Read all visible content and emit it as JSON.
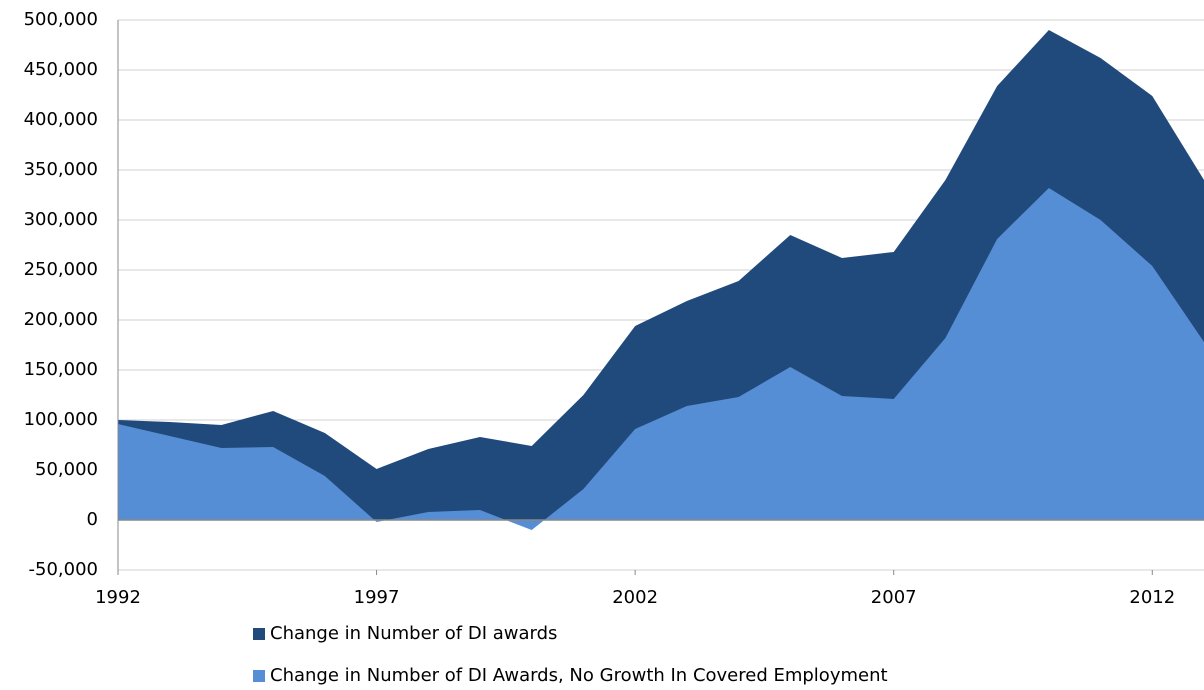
{
  "chart_data": {
    "type": "area",
    "x": [
      1992,
      1993,
      1994,
      1995,
      1996,
      1997,
      1998,
      1999,
      2000,
      2001,
      2002,
      2003,
      2004,
      2005,
      2006,
      2007,
      2008,
      2009,
      2010,
      2011,
      2012,
      2013
    ],
    "series": [
      {
        "name": "Change in Number of DI awards",
        "color": "#214a7c",
        "values": [
          100000,
          98000,
          95000,
          109000,
          87000,
          51000,
          71000,
          83000,
          74000,
          125000,
          194000,
          219000,
          239000,
          285000,
          262000,
          268000,
          340000,
          434000,
          490000,
          462000,
          424000,
          340000
        ]
      },
      {
        "name": "Change in Number of DI Awards, No Growth In Covered Employment",
        "color": "#558ed5",
        "values": [
          96000,
          84000,
          72000,
          73000,
          44000,
          -2000,
          8000,
          10000,
          -10000,
          31000,
          91000,
          114000,
          123000,
          153000,
          124000,
          121000,
          182000,
          281000,
          332000,
          300000,
          254000,
          178000
        ]
      }
    ],
    "xlim": [
      1992,
      2013
    ],
    "xticks": [
      1992,
      1997,
      2002,
      2007,
      2012
    ],
    "ylim": [
      -50000,
      500000
    ],
    "yticks": [
      {
        "value": -50000,
        "label": "-50,000"
      },
      0,
      {
        "value": 50000,
        "label": "50,000"
      },
      {
        "value": 100000,
        "label": "100,000"
      },
      {
        "value": 150000,
        "label": "150,000"
      },
      {
        "value": 200000,
        "label": "200,000"
      },
      {
        "value": 250000,
        "label": "250,000"
      },
      {
        "value": 300000,
        "label": "300,000"
      },
      {
        "value": 350000,
        "label": "350,000"
      },
      {
        "value": 400000,
        "label": "400,000"
      },
      {
        "value": 450000,
        "label": "450,000"
      },
      {
        "value": 500000,
        "label": "500,000"
      }
    ],
    "grid": true,
    "legend": "bottom"
  }
}
